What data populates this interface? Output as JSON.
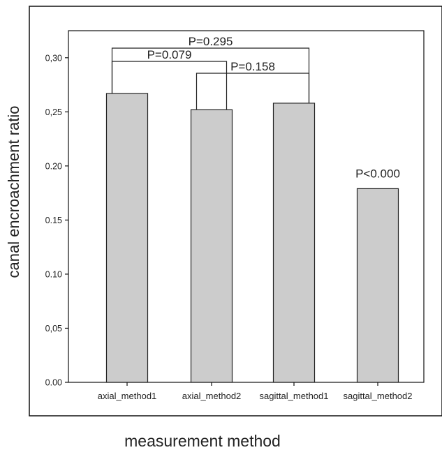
{
  "chart_data": {
    "type": "bar",
    "title": "",
    "xlabel": "measurement method",
    "ylabel": "canal encroachment ratio",
    "categories": [
      "axial_method1",
      "axial_method2",
      "sagittal_method1",
      "sagittal_method2"
    ],
    "values": [
      0.267,
      0.252,
      0.258,
      0.179
    ],
    "ylim": [
      0.0,
      0.325
    ],
    "yticks": [
      {
        "value": 0.0,
        "label": "0.00"
      },
      {
        "value": 0.05,
        "label": "0,05"
      },
      {
        "value": 0.1,
        "label": "0.10"
      },
      {
        "value": 0.15,
        "label": "0.15"
      },
      {
        "value": 0.2,
        "label": "0.20"
      },
      {
        "value": 0.25,
        "label": "0,25"
      },
      {
        "value": 0.3,
        "label": "0,30"
      }
    ],
    "grid": false,
    "bar_color": "#cccccc",
    "annotations": [
      {
        "type": "bracket",
        "from": 0,
        "to": 2,
        "label": "P=0.295"
      },
      {
        "type": "bracket",
        "from": 0,
        "to": 1,
        "label": "P=0.079"
      },
      {
        "type": "bracket",
        "from": 1,
        "to": 2,
        "label": "P=0.158"
      },
      {
        "type": "text",
        "at": 3,
        "label": "P<0.000"
      }
    ]
  }
}
